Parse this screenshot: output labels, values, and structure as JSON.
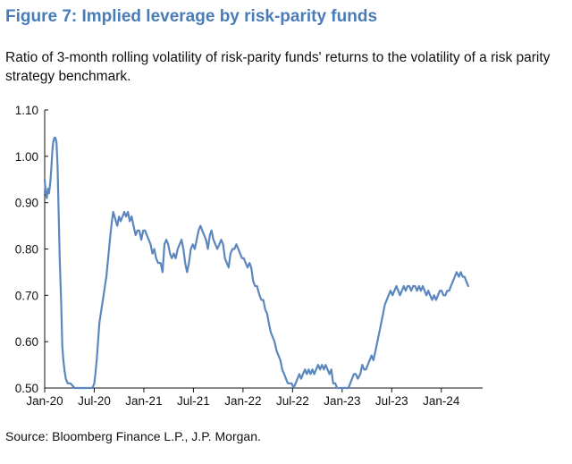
{
  "figure": {
    "title": "Figure 7: Implied leverage by risk-parity funds",
    "subtitle": "Ratio of 3-month rolling volatility of risk-parity funds' returns to the volatility of a risk parity strategy benchmark.",
    "source": "Source: Bloomberg Finance L.P., J.P. Morgan."
  },
  "colors": {
    "title": "#4a7cb8",
    "line": "#5b87be",
    "axis": "#111111"
  },
  "chart_data": {
    "type": "line",
    "title": "Figure 7: Implied leverage by risk-parity funds",
    "subtitle": "Ratio of 3-month rolling volatility of risk-parity funds' returns to the volatility of a risk parity strategy benchmark.",
    "xlabel": "",
    "ylabel": "",
    "ylim": [
      0.5,
      1.1
    ],
    "y_ticks": [
      0.5,
      0.6,
      0.7,
      0.8,
      0.9,
      1.0,
      1.1
    ],
    "y_tick_labels": [
      "0.50",
      "0.60",
      "0.70",
      "0.80",
      "0.90",
      "1.00",
      "1.10"
    ],
    "x_range": [
      "2020-01",
      "2024-06"
    ],
    "x_ticks": [
      "2020-01",
      "2020-07",
      "2021-01",
      "2021-07",
      "2022-01",
      "2022-07",
      "2023-01",
      "2023-07",
      "2024-01"
    ],
    "x_tick_labels": [
      "Jan-20",
      "Jul-20",
      "Jan-21",
      "Jul-21",
      "Jan-22",
      "Jul-22",
      "Jan-23",
      "Jul-23",
      "Jan-24"
    ],
    "grid": false,
    "legend": "none",
    "series": [
      {
        "points": [
          [
            "2020-01-01",
            0.95
          ],
          [
            "2020-01-05",
            0.92
          ],
          [
            "2020-01-09",
            0.91
          ],
          [
            "2020-01-13",
            0.93
          ],
          [
            "2020-01-17",
            0.92
          ],
          [
            "2020-01-21",
            0.94
          ],
          [
            "2020-01-25",
            0.97
          ],
          [
            "2020-01-29",
            1.01
          ],
          [
            "2020-02-02",
            1.03
          ],
          [
            "2020-02-06",
            1.04
          ],
          [
            "2020-02-10",
            1.04
          ],
          [
            "2020-02-14",
            1.03
          ],
          [
            "2020-02-18",
            0.98
          ],
          [
            "2020-02-22",
            0.88
          ],
          [
            "2020-02-26",
            0.78
          ],
          [
            "2020-03-01",
            0.68
          ],
          [
            "2020-03-05",
            0.59
          ],
          [
            "2020-03-09",
            0.56
          ],
          [
            "2020-03-13",
            0.54
          ],
          [
            "2020-03-18",
            0.52
          ],
          [
            "2020-03-25",
            0.51
          ],
          [
            "2020-04-05",
            0.51
          ],
          [
            "2020-04-20",
            0.5
          ],
          [
            "2020-05-05",
            0.5
          ],
          [
            "2020-05-20",
            0.5
          ],
          [
            "2020-06-05",
            0.5
          ],
          [
            "2020-06-15",
            0.5
          ],
          [
            "2020-06-25",
            0.5
          ],
          [
            "2020-07-01",
            0.51
          ],
          [
            "2020-07-05",
            0.53
          ],
          [
            "2020-07-10",
            0.56
          ],
          [
            "2020-07-15",
            0.6
          ],
          [
            "2020-07-20",
            0.64
          ],
          [
            "2020-07-25",
            0.66
          ],
          [
            "2020-07-30",
            0.68
          ],
          [
            "2020-08-05",
            0.7
          ],
          [
            "2020-08-10",
            0.72
          ],
          [
            "2020-08-15",
            0.74
          ],
          [
            "2020-08-20",
            0.77
          ],
          [
            "2020-08-25",
            0.8
          ],
          [
            "2020-08-30",
            0.83
          ],
          [
            "2020-09-05",
            0.86
          ],
          [
            "2020-09-10",
            0.88
          ],
          [
            "2020-09-15",
            0.87
          ],
          [
            "2020-09-20",
            0.86
          ],
          [
            "2020-09-25",
            0.85
          ],
          [
            "2020-10-01",
            0.87
          ],
          [
            "2020-10-07",
            0.86
          ],
          [
            "2020-10-14",
            0.87
          ],
          [
            "2020-10-20",
            0.88
          ],
          [
            "2020-10-27",
            0.87
          ],
          [
            "2020-11-03",
            0.88
          ],
          [
            "2020-11-10",
            0.86
          ],
          [
            "2020-11-17",
            0.87
          ],
          [
            "2020-11-24",
            0.85
          ],
          [
            "2020-12-01",
            0.83
          ],
          [
            "2020-12-08",
            0.84
          ],
          [
            "2020-12-15",
            0.84
          ],
          [
            "2020-12-22",
            0.82
          ],
          [
            "2020-12-29",
            0.84
          ],
          [
            "2021-01-05",
            0.84
          ],
          [
            "2021-01-12",
            0.83
          ],
          [
            "2021-01-19",
            0.82
          ],
          [
            "2021-01-26",
            0.81
          ],
          [
            "2021-02-02",
            0.79
          ],
          [
            "2021-02-09",
            0.8
          ],
          [
            "2021-02-16",
            0.78
          ],
          [
            "2021-02-23",
            0.77
          ],
          [
            "2021-03-02",
            0.77
          ],
          [
            "2021-03-09",
            0.75
          ],
          [
            "2021-03-16",
            0.81
          ],
          [
            "2021-03-23",
            0.82
          ],
          [
            "2021-03-30",
            0.81
          ],
          [
            "2021-04-06",
            0.79
          ],
          [
            "2021-04-13",
            0.78
          ],
          [
            "2021-04-20",
            0.79
          ],
          [
            "2021-04-27",
            0.78
          ],
          [
            "2021-05-04",
            0.8
          ],
          [
            "2021-05-11",
            0.81
          ],
          [
            "2021-05-18",
            0.82
          ],
          [
            "2021-05-25",
            0.8
          ],
          [
            "2021-06-01",
            0.77
          ],
          [
            "2021-06-08",
            0.75
          ],
          [
            "2021-06-15",
            0.77
          ],
          [
            "2021-06-22",
            0.8
          ],
          [
            "2021-06-29",
            0.81
          ],
          [
            "2021-07-06",
            0.8
          ],
          [
            "2021-07-13",
            0.82
          ],
          [
            "2021-07-20",
            0.84
          ],
          [
            "2021-07-27",
            0.85
          ],
          [
            "2021-08-03",
            0.84
          ],
          [
            "2021-08-10",
            0.83
          ],
          [
            "2021-08-17",
            0.82
          ],
          [
            "2021-08-24",
            0.8
          ],
          [
            "2021-08-31",
            0.83
          ],
          [
            "2021-09-07",
            0.84
          ],
          [
            "2021-09-14",
            0.82
          ],
          [
            "2021-09-21",
            0.81
          ],
          [
            "2021-09-28",
            0.8
          ],
          [
            "2021-10-05",
            0.81
          ],
          [
            "2021-10-12",
            0.82
          ],
          [
            "2021-10-19",
            0.81
          ],
          [
            "2021-10-26",
            0.78
          ],
          [
            "2021-11-02",
            0.77
          ],
          [
            "2021-11-09",
            0.76
          ],
          [
            "2021-11-16",
            0.79
          ],
          [
            "2021-11-23",
            0.8
          ],
          [
            "2021-11-30",
            0.8
          ],
          [
            "2021-12-07",
            0.81
          ],
          [
            "2021-12-14",
            0.8
          ],
          [
            "2021-12-21",
            0.79
          ],
          [
            "2021-12-28",
            0.78
          ],
          [
            "2022-01-04",
            0.78
          ],
          [
            "2022-01-11",
            0.77
          ],
          [
            "2022-01-18",
            0.76
          ],
          [
            "2022-01-25",
            0.77
          ],
          [
            "2022-02-01",
            0.76
          ],
          [
            "2022-02-08",
            0.73
          ],
          [
            "2022-02-15",
            0.72
          ],
          [
            "2022-02-22",
            0.72
          ],
          [
            "2022-03-01",
            0.7
          ],
          [
            "2022-03-08",
            0.69
          ],
          [
            "2022-03-15",
            0.69
          ],
          [
            "2022-03-22",
            0.67
          ],
          [
            "2022-03-29",
            0.66
          ],
          [
            "2022-04-05",
            0.64
          ],
          [
            "2022-04-12",
            0.62
          ],
          [
            "2022-04-19",
            0.61
          ],
          [
            "2022-04-26",
            0.6
          ],
          [
            "2022-05-03",
            0.58
          ],
          [
            "2022-05-10",
            0.57
          ],
          [
            "2022-05-17",
            0.56
          ],
          [
            "2022-05-24",
            0.54
          ],
          [
            "2022-05-31",
            0.53
          ],
          [
            "2022-06-07",
            0.52
          ],
          [
            "2022-06-14",
            0.51
          ],
          [
            "2022-06-21",
            0.51
          ],
          [
            "2022-06-28",
            0.51
          ],
          [
            "2022-07-05",
            0.5
          ],
          [
            "2022-07-12",
            0.51
          ],
          [
            "2022-07-19",
            0.52
          ],
          [
            "2022-07-26",
            0.53
          ],
          [
            "2022-08-02",
            0.52
          ],
          [
            "2022-08-09",
            0.53
          ],
          [
            "2022-08-16",
            0.54
          ],
          [
            "2022-08-23",
            0.53
          ],
          [
            "2022-08-30",
            0.54
          ],
          [
            "2022-09-06",
            0.53
          ],
          [
            "2022-09-13",
            0.54
          ],
          [
            "2022-09-20",
            0.53
          ],
          [
            "2022-09-27",
            0.54
          ],
          [
            "2022-10-04",
            0.55
          ],
          [
            "2022-10-11",
            0.54
          ],
          [
            "2022-10-18",
            0.55
          ],
          [
            "2022-10-25",
            0.54
          ],
          [
            "2022-11-01",
            0.55
          ],
          [
            "2022-11-08",
            0.54
          ],
          [
            "2022-11-15",
            0.53
          ],
          [
            "2022-11-22",
            0.54
          ],
          [
            "2022-11-29",
            0.51
          ],
          [
            "2022-12-06",
            0.51
          ],
          [
            "2022-12-13",
            0.5
          ],
          [
            "2022-12-20",
            0.5
          ],
          [
            "2022-12-27",
            0.5
          ],
          [
            "2023-01-03",
            0.5
          ],
          [
            "2023-01-10",
            0.5
          ],
          [
            "2023-01-17",
            0.5
          ],
          [
            "2023-01-24",
            0.5
          ],
          [
            "2023-01-31",
            0.51
          ],
          [
            "2023-02-07",
            0.52
          ],
          [
            "2023-02-14",
            0.53
          ],
          [
            "2023-02-21",
            0.53
          ],
          [
            "2023-02-28",
            0.52
          ],
          [
            "2023-03-07",
            0.53
          ],
          [
            "2023-03-14",
            0.55
          ],
          [
            "2023-03-21",
            0.54
          ],
          [
            "2023-03-28",
            0.54
          ],
          [
            "2023-04-04",
            0.55
          ],
          [
            "2023-04-11",
            0.56
          ],
          [
            "2023-04-18",
            0.57
          ],
          [
            "2023-04-25",
            0.56
          ],
          [
            "2023-05-02",
            0.58
          ],
          [
            "2023-05-09",
            0.6
          ],
          [
            "2023-05-16",
            0.62
          ],
          [
            "2023-05-23",
            0.64
          ],
          [
            "2023-05-30",
            0.66
          ],
          [
            "2023-06-06",
            0.68
          ],
          [
            "2023-06-13",
            0.69
          ],
          [
            "2023-06-20",
            0.7
          ],
          [
            "2023-06-27",
            0.71
          ],
          [
            "2023-07-04",
            0.7
          ],
          [
            "2023-07-11",
            0.71
          ],
          [
            "2023-07-18",
            0.72
          ],
          [
            "2023-07-25",
            0.71
          ],
          [
            "2023-08-01",
            0.7
          ],
          [
            "2023-08-08",
            0.71
          ],
          [
            "2023-08-15",
            0.72
          ],
          [
            "2023-08-22",
            0.71
          ],
          [
            "2023-08-29",
            0.72
          ],
          [
            "2023-09-05",
            0.72
          ],
          [
            "2023-09-12",
            0.71
          ],
          [
            "2023-09-19",
            0.72
          ],
          [
            "2023-09-26",
            0.72
          ],
          [
            "2023-10-03",
            0.71
          ],
          [
            "2023-10-10",
            0.72
          ],
          [
            "2023-10-17",
            0.71
          ],
          [
            "2023-10-24",
            0.72
          ],
          [
            "2023-10-31",
            0.71
          ],
          [
            "2023-11-07",
            0.7
          ],
          [
            "2023-11-14",
            0.71
          ],
          [
            "2023-11-21",
            0.7
          ],
          [
            "2023-11-28",
            0.69
          ],
          [
            "2023-12-05",
            0.7
          ],
          [
            "2023-12-12",
            0.69
          ],
          [
            "2023-12-19",
            0.7
          ],
          [
            "2023-12-26",
            0.71
          ],
          [
            "2024-01-02",
            0.71
          ],
          [
            "2024-01-09",
            0.7
          ],
          [
            "2024-01-16",
            0.7
          ],
          [
            "2024-01-23",
            0.71
          ],
          [
            "2024-01-30",
            0.71
          ],
          [
            "2024-02-06",
            0.72
          ],
          [
            "2024-02-13",
            0.73
          ],
          [
            "2024-02-20",
            0.74
          ],
          [
            "2024-02-27",
            0.75
          ],
          [
            "2024-03-05",
            0.74
          ],
          [
            "2024-03-12",
            0.75
          ],
          [
            "2024-03-19",
            0.74
          ],
          [
            "2024-03-26",
            0.74
          ],
          [
            "2024-04-02",
            0.73
          ],
          [
            "2024-04-09",
            0.72
          ]
        ]
      }
    ]
  }
}
